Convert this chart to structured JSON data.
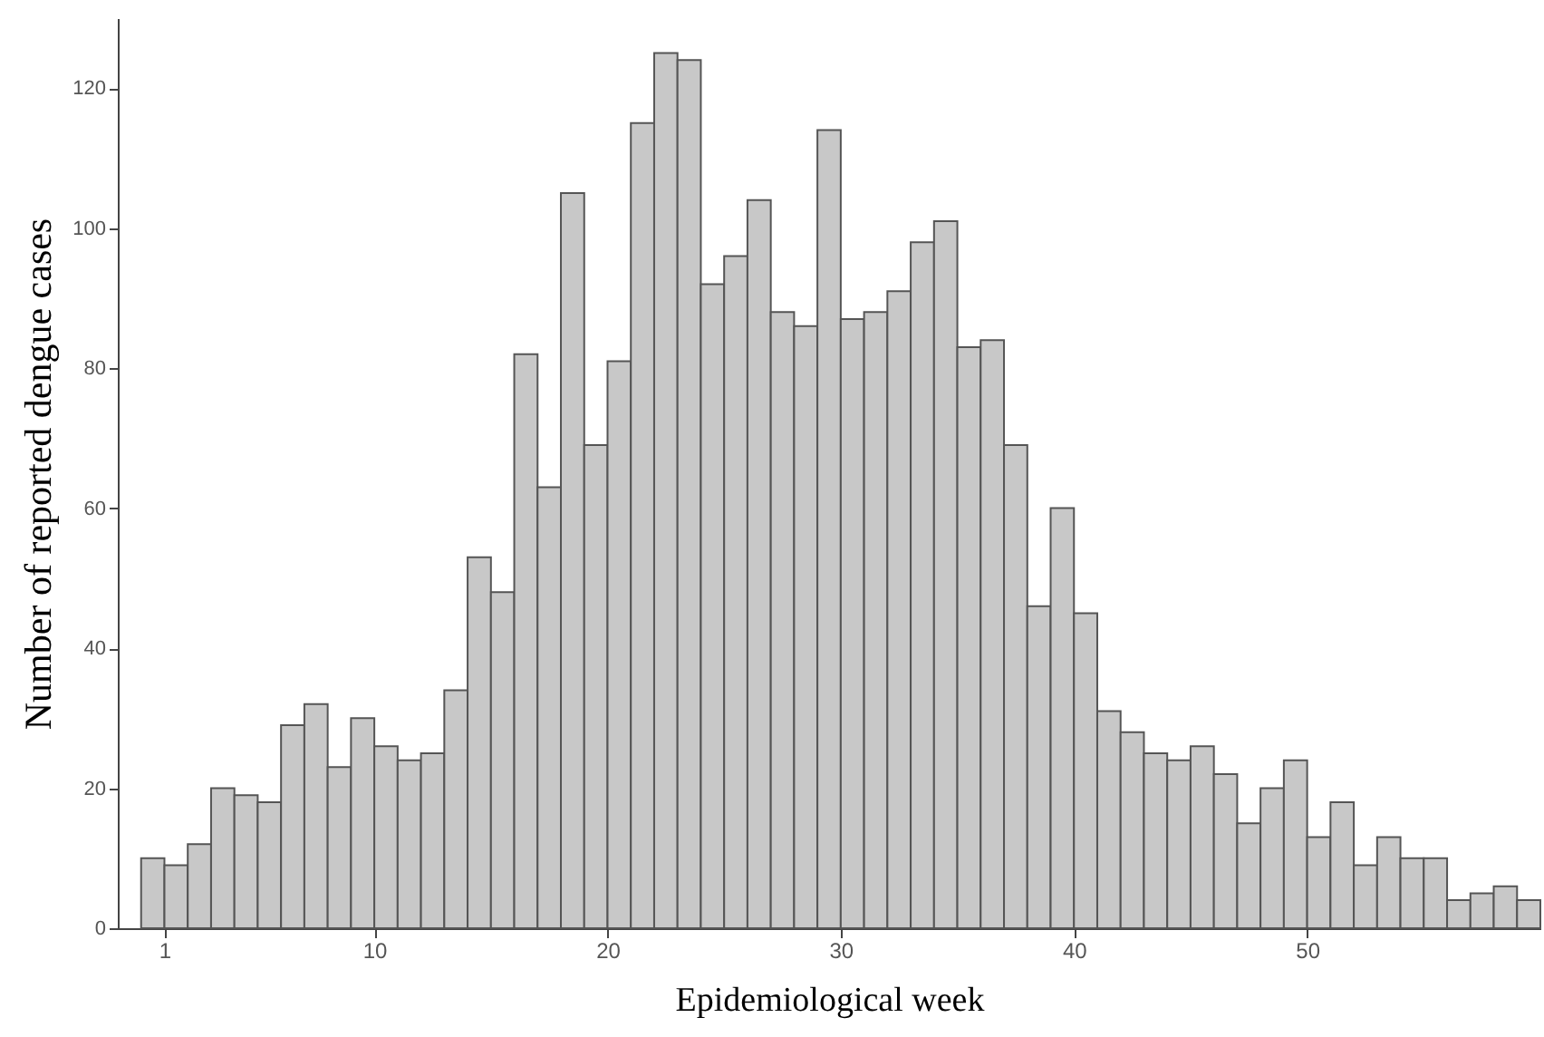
{
  "chart_data": {
    "type": "histogram",
    "xlabel": "Epidemiological week",
    "ylabel": "Number of reported dengue cases",
    "bins": [
      0,
      1,
      2,
      3,
      4,
      5,
      6,
      7,
      8,
      9,
      10,
      11,
      12,
      13,
      14,
      15,
      16,
      17,
      18,
      19,
      20,
      21,
      22,
      23,
      24,
      25,
      26,
      27,
      28,
      29,
      30,
      31,
      32,
      33,
      34,
      35,
      36,
      37,
      38,
      39,
      40,
      41,
      42,
      43,
      44,
      45,
      46,
      47,
      48,
      49,
      50,
      51,
      52,
      53,
      54,
      55,
      56,
      57,
      58,
      59,
      60
    ],
    "values": [
      10,
      9,
      12,
      20,
      19,
      18,
      29,
      32,
      23,
      30,
      26,
      24,
      25,
      34,
      53,
      48,
      82,
      63,
      105,
      69,
      81,
      115,
      125,
      124,
      92,
      96,
      104,
      88,
      86,
      114,
      87,
      88,
      91,
      98,
      101,
      83,
      84,
      69,
      46,
      60,
      45,
      31,
      28,
      25,
      24,
      26,
      22,
      15,
      20,
      24,
      13,
      18,
      9,
      13,
      10,
      10,
      4,
      5,
      6,
      4
    ],
    "color": "#c8c8c8",
    "xlim": [
      -1,
      60
    ],
    "xticks": [
      1,
      10,
      20,
      30,
      40,
      50
    ],
    "ylim": [
      0,
      130
    ],
    "yticks": [
      0,
      20,
      40,
      60,
      80,
      100,
      120
    ],
    "grid": false
  }
}
